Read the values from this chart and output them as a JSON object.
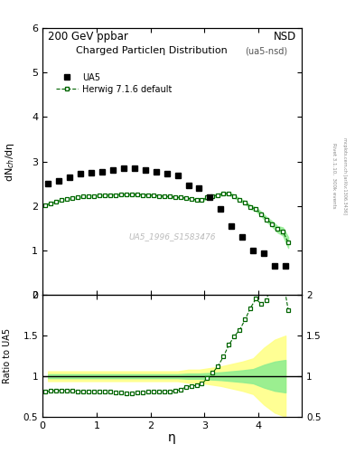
{
  "title_top": "200 GeV ppbar",
  "title_right": "NSD",
  "plot_title": "Charged Particleη Distribution",
  "plot_subtitle": "(ua5-nsd)",
  "watermark": "UA5_1996_S1583476",
  "right_label1": "Rivet 3.1.10,  300k events",
  "right_label2": "mcplots.cern.ch [arXiv:1306.3436]",
  "ua5_eta": [
    0.1,
    0.3,
    0.5,
    0.7,
    0.9,
    1.1,
    1.3,
    1.5,
    1.7,
    1.9,
    2.1,
    2.3,
    2.5,
    2.7,
    2.9,
    3.1,
    3.3,
    3.5,
    3.7,
    3.9,
    4.1,
    4.3,
    4.5
  ],
  "ua5_vals": [
    2.5,
    2.57,
    2.65,
    2.72,
    2.75,
    2.76,
    2.8,
    2.85,
    2.85,
    2.8,
    2.77,
    2.73,
    2.68,
    2.47,
    2.4,
    2.2,
    1.93,
    1.55,
    1.3,
    1.0,
    0.95,
    0.65,
    0.65
  ],
  "hw_eta": [
    0.05,
    0.15,
    0.25,
    0.35,
    0.45,
    0.55,
    0.65,
    0.75,
    0.85,
    0.95,
    1.05,
    1.15,
    1.25,
    1.35,
    1.45,
    1.55,
    1.65,
    1.75,
    1.85,
    1.95,
    2.05,
    2.15,
    2.25,
    2.35,
    2.45,
    2.55,
    2.65,
    2.75,
    2.85,
    2.95,
    3.05,
    3.15,
    3.25,
    3.35,
    3.45,
    3.55,
    3.65,
    3.75,
    3.85,
    3.95,
    4.05,
    4.15,
    4.25,
    4.35,
    4.45,
    4.55
  ],
  "hw_vals": [
    2.02,
    2.06,
    2.1,
    2.13,
    2.16,
    2.18,
    2.2,
    2.21,
    2.22,
    2.23,
    2.24,
    2.24,
    2.25,
    2.25,
    2.26,
    2.26,
    2.26,
    2.26,
    2.25,
    2.25,
    2.24,
    2.23,
    2.22,
    2.21,
    2.2,
    2.19,
    2.18,
    2.16,
    2.14,
    2.13,
    2.19,
    2.22,
    2.25,
    2.28,
    2.28,
    2.22,
    2.14,
    2.08,
    1.98,
    1.93,
    1.82,
    1.7,
    1.6,
    1.48,
    1.43,
    1.18
  ],
  "hw_err": [
    0.02,
    0.02,
    0.02,
    0.02,
    0.02,
    0.02,
    0.02,
    0.02,
    0.02,
    0.02,
    0.02,
    0.02,
    0.02,
    0.02,
    0.02,
    0.02,
    0.02,
    0.02,
    0.02,
    0.02,
    0.02,
    0.02,
    0.02,
    0.02,
    0.02,
    0.02,
    0.02,
    0.02,
    0.02,
    0.02,
    0.03,
    0.03,
    0.03,
    0.03,
    0.03,
    0.03,
    0.03,
    0.03,
    0.04,
    0.04,
    0.05,
    0.05,
    0.06,
    0.07,
    0.09,
    0.12
  ],
  "ua5_color": "black",
  "hw_color": "#006400",
  "hw_fill": "#90EE90",
  "band_yellow": "#FFFF88",
  "band_green": "#90EE90",
  "ylabel_main": "dN$_{ch}$/dη",
  "ylabel_ratio": "Ratio to UA5",
  "xlabel": "η",
  "ylim_main": [
    0,
    6
  ],
  "ylim_ratio": [
    0.5,
    2.0
  ],
  "xlim": [
    0,
    4.8
  ],
  "ua5_sys_err": [
    0.06,
    0.06,
    0.06,
    0.06,
    0.06,
    0.06,
    0.06,
    0.06,
    0.06,
    0.06,
    0.06,
    0.06,
    0.06,
    0.08,
    0.08,
    0.1,
    0.12,
    0.15,
    0.18,
    0.22,
    0.35,
    0.45,
    0.5
  ]
}
